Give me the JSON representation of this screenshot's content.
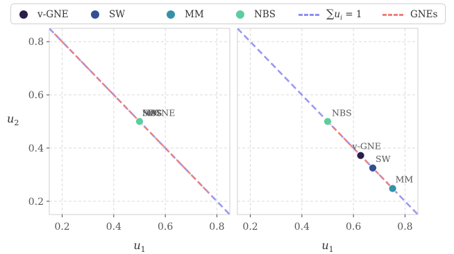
{
  "legend": {
    "items": [
      {
        "label": "v-GNE",
        "marker": "dot",
        "color": "#2b1e4a"
      },
      {
        "label": "SW",
        "marker": "dot",
        "color": "#32508f"
      },
      {
        "label": "MM",
        "marker": "dot",
        "color": "#3591a8"
      },
      {
        "label": "NBS",
        "marker": "dot",
        "color": "#5ccda0"
      },
      {
        "label_prefix": "∑",
        "label_var": "u",
        "label_sub": "i",
        "label_suffix": " = 1",
        "marker": "dash",
        "color": "#8f8fef"
      },
      {
        "label": "GNEs",
        "marker": "dash",
        "color": "#ef7f7a"
      }
    ]
  },
  "chart_data": [
    {
      "type": "scatter",
      "xlabel_var": "u",
      "xlabel_sub": "1",
      "ylabel_var": "u",
      "ylabel_sub": "2",
      "xlim": [
        0.15,
        0.85
      ],
      "ylim": [
        0.15,
        0.85
      ],
      "xticks": [
        "0.2",
        "0.4",
        "0.6",
        "0.8"
      ],
      "yticks": [
        "0.2",
        "0.4",
        "0.6",
        "0.8"
      ],
      "grid": true,
      "lines": [
        {
          "name": "∑u_i = 1",
          "points": [
            [
              0.15,
              0.85
            ],
            [
              0.85,
              0.15
            ]
          ],
          "color": "#8f8fef"
        },
        {
          "name": "GNEs",
          "points": [
            [
              0.17,
              0.83
            ],
            [
              0.77,
              0.23
            ]
          ],
          "color": "#ef7f7a"
        }
      ],
      "points": [
        {
          "name": "v-GNE",
          "x": 0.5,
          "y": 0.5,
          "color": "#2b1e4a"
        },
        {
          "name": "SW",
          "x": 0.5,
          "y": 0.5,
          "color": "#32508f"
        },
        {
          "name": "MM",
          "x": 0.5,
          "y": 0.5,
          "color": "#3591a8"
        },
        {
          "name": "NBS",
          "x": 0.5,
          "y": 0.5,
          "color": "#5ccda0"
        }
      ],
      "annotations": [
        "NBS",
        "MM",
        "SW",
        "v-GNE"
      ]
    },
    {
      "type": "scatter",
      "xlabel_var": "u",
      "xlabel_sub": "1",
      "xlim": [
        0.15,
        0.85
      ],
      "ylim": [
        0.15,
        0.85
      ],
      "xticks": [
        "0.2",
        "0.4",
        "0.6",
        "0.8"
      ],
      "grid": true,
      "lines": [
        {
          "name": "∑u_i = 1",
          "points": [
            [
              0.15,
              0.85
            ],
            [
              0.85,
              0.15
            ]
          ],
          "color": "#8f8fef"
        },
        {
          "name": "GNEs",
          "points": [
            [
              0.5,
              0.5
            ],
            [
              0.77,
              0.23
            ]
          ],
          "color": "#ef7f7a"
        }
      ],
      "points": [
        {
          "name": "NBS",
          "x": 0.5,
          "y": 0.5,
          "color": "#5ccda0"
        },
        {
          "name": "v-GNE",
          "x": 0.628,
          "y": 0.372,
          "color": "#2b1e4a"
        },
        {
          "name": "SW",
          "x": 0.675,
          "y": 0.325,
          "color": "#32508f"
        },
        {
          "name": "MM",
          "x": 0.752,
          "y": 0.248,
          "color": "#3591a8"
        }
      ],
      "annotations": [
        "NBS",
        "v-GNE",
        "SW",
        "MM"
      ]
    }
  ]
}
